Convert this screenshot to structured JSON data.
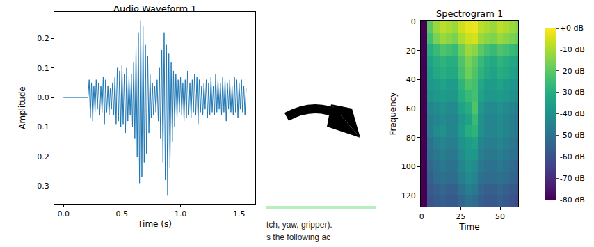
{
  "chart_data": [
    {
      "type": "line",
      "title": "Audio Waveform 1",
      "x_label": "Time (s)",
      "y_label": "Amplitude",
      "color": "#1f77b4",
      "grid": false,
      "x": [
        0,
        0.21,
        0.22,
        0.23,
        0.24,
        0.25,
        0.26,
        0.27,
        0.28,
        0.29,
        0.3,
        0.31,
        0.32,
        0.33,
        0.34,
        0.35,
        0.36,
        0.37,
        0.38,
        0.39,
        0.4,
        0.41,
        0.42,
        0.43,
        0.44,
        0.45,
        0.46,
        0.47,
        0.48,
        0.49,
        0.5,
        0.51,
        0.52,
        0.53,
        0.54,
        0.55,
        0.56,
        0.57,
        0.58,
        0.59,
        0.6,
        0.61,
        0.62,
        0.63,
        0.64,
        0.65,
        0.66,
        0.67,
        0.68,
        0.69,
        0.7,
        0.71,
        0.72,
        0.73,
        0.74,
        0.75,
        0.76,
        0.77,
        0.78,
        0.79,
        0.8,
        0.81,
        0.82,
        0.83,
        0.84,
        0.85,
        0.86,
        0.87,
        0.88,
        0.89,
        0.9,
        0.91,
        0.92,
        0.93,
        0.94,
        0.95,
        0.96,
        0.97,
        0.98,
        0.99,
        1.0,
        1.01,
        1.02,
        1.03,
        1.04,
        1.05,
        1.06,
        1.07,
        1.08,
        1.09,
        1.1,
        1.11,
        1.12,
        1.13,
        1.14,
        1.15,
        1.16,
        1.17,
        1.18,
        1.19,
        1.2,
        1.21,
        1.22,
        1.23,
        1.24,
        1.25,
        1.26,
        1.27,
        1.28,
        1.29,
        1.3,
        1.31,
        1.32,
        1.33,
        1.34,
        1.35,
        1.36,
        1.37,
        1.38,
        1.39,
        1.4,
        1.41,
        1.42,
        1.43,
        1.44,
        1.45,
        1.46,
        1.47,
        1.48,
        1.49,
        1.5,
        1.51,
        1.52,
        1.53,
        1.54,
        1.55,
        1.56
      ],
      "values": [
        0,
        0,
        0.06,
        -0.07,
        0.05,
        -0.08,
        0.04,
        -0.05,
        0.06,
        -0.04,
        0.05,
        -0.06,
        0.04,
        -0.05,
        0.07,
        -0.09,
        0.06,
        -0.05,
        0.04,
        -0.06,
        0.03,
        -0.04,
        0.05,
        -0.06,
        0.07,
        -0.09,
        0.1,
        -0.08,
        0.09,
        -0.1,
        0.11,
        -0.09,
        0.08,
        -0.12,
        0.1,
        -0.08,
        0.07,
        -0.06,
        0.08,
        -0.1,
        0.12,
        -0.14,
        0.17,
        -0.2,
        0.22,
        -0.29,
        0.26,
        -0.27,
        0.24,
        -0.22,
        0.18,
        -0.19,
        0.14,
        -0.12,
        0.08,
        -0.07,
        0.05,
        -0.06,
        0.04,
        -0.05,
        0.06,
        -0.08,
        0.1,
        -0.14,
        0.16,
        -0.22,
        0.22,
        -0.28,
        0.18,
        -0.33,
        0.15,
        -0.24,
        0.12,
        -0.15,
        0.09,
        -0.1,
        0.08,
        -0.07,
        0.06,
        -0.05,
        0.07,
        -0.06,
        0.05,
        -0.08,
        0.06,
        -0.07,
        0.09,
        -0.06,
        0.05,
        -0.07,
        0.06,
        -0.05,
        0.08,
        -0.06,
        0.07,
        -0.09,
        0.06,
        -0.05,
        0.04,
        -0.06,
        0.05,
        -0.04,
        0.06,
        -0.07,
        0.05,
        -0.06,
        0.07,
        -0.05,
        0.04,
        -0.06,
        0.08,
        -0.05,
        0.06,
        -0.04,
        0.05,
        -0.06,
        0.07,
        -0.05,
        0.06,
        -0.08,
        0.05,
        -0.04,
        0.06,
        -0.05,
        0.04,
        -0.06,
        0.07,
        -0.05,
        0.06,
        -0.07,
        0.05,
        -0.04,
        0.06,
        -0.05,
        0.04,
        -0.06,
        0.03
      ],
      "xlim": [
        -0.078,
        1.638
      ],
      "xticks": [
        {
          "value": 0,
          "label": "0.0"
        },
        {
          "value": 0.5,
          "label": "0.5"
        },
        {
          "value": 1,
          "label": "1.0"
        },
        {
          "value": 1.5,
          "label": "1.5"
        }
      ],
      "ylim": [
        -0.36,
        0.29
      ],
      "yticks": [
        {
          "value": -0.3,
          "label": "−0.3"
        },
        {
          "value": -0.2,
          "label": "−0.2"
        },
        {
          "value": -0.1,
          "label": "−0.1"
        },
        {
          "value": 0,
          "label": "0.0"
        },
        {
          "value": 0.1,
          "label": "0.1"
        },
        {
          "value": 0.2,
          "label": "0.2"
        }
      ]
    },
    {
      "type": "heatmap",
      "title": "Spectrogram 1",
      "x_label": "Time",
      "y_label": "Frequency",
      "color": "Viridis",
      "grid": false,
      "x": [
        1.5,
        5.5,
        9.5,
        13.5,
        17.5,
        21.5,
        25.5,
        29.5,
        33.5,
        37.5,
        41.5,
        45.5,
        49.5,
        53.5,
        57.5,
        61.5
      ],
      "y": [
        3.5,
        11.5,
        19.5,
        27.5,
        35.5,
        43.5,
        51.5,
        59.5,
        67.5,
        75.5,
        83.5,
        91.5,
        99.5,
        107.5,
        115.5,
        123.5
      ],
      "z": [
        [
          -80,
          -20,
          -12,
          -8,
          -10,
          -12,
          -6,
          -3,
          -2,
          -8,
          -10,
          -12,
          -8,
          -10,
          -12,
          -14
        ],
        [
          -80,
          -24,
          -16,
          -12,
          -14,
          -16,
          -10,
          -6,
          -5,
          -12,
          -14,
          -15,
          -12,
          -14,
          -16,
          -18
        ],
        [
          -80,
          -30,
          -26,
          -22,
          -24,
          -26,
          -18,
          -12,
          -14,
          -20,
          -24,
          -26,
          -22,
          -24,
          -26,
          -28
        ],
        [
          -80,
          -34,
          -30,
          -28,
          -30,
          -30,
          -22,
          -16,
          -20,
          -26,
          -30,
          -32,
          -28,
          -30,
          -32,
          -34
        ],
        [
          -80,
          -36,
          -32,
          -30,
          -32,
          -32,
          -24,
          -18,
          -22,
          -28,
          -32,
          -34,
          -30,
          -32,
          -34,
          -36
        ],
        [
          -80,
          -38,
          -36,
          -34,
          -36,
          -36,
          -28,
          -22,
          -24,
          -32,
          -36,
          -36,
          -34,
          -36,
          -38,
          -40
        ],
        [
          -80,
          -40,
          -38,
          -36,
          -38,
          -38,
          -30,
          -26,
          -24,
          -34,
          -38,
          -38,
          -36,
          -38,
          -40,
          -42
        ],
        [
          -80,
          -44,
          -42,
          -40,
          -42,
          -42,
          -34,
          -30,
          -22,
          -38,
          -42,
          -42,
          -40,
          -42,
          -44,
          -46
        ],
        [
          -80,
          -46,
          -44,
          -42,
          -44,
          -44,
          -38,
          -34,
          -26,
          -40,
          -44,
          -44,
          -42,
          -44,
          -46,
          -48
        ],
        [
          -80,
          -46,
          -42,
          -40,
          -44,
          -44,
          -36,
          -30,
          -28,
          -40,
          -44,
          -44,
          -42,
          -44,
          -46,
          -48
        ],
        [
          -80,
          -50,
          -46,
          -44,
          -46,
          -46,
          -40,
          -36,
          -34,
          -44,
          -46,
          -46,
          -44,
          -46,
          -48,
          -50
        ],
        [
          -80,
          -52,
          -48,
          -46,
          -48,
          -48,
          -42,
          -38,
          -38,
          -46,
          -48,
          -48,
          -46,
          -48,
          -50,
          -52
        ],
        [
          -80,
          -54,
          -50,
          -48,
          -50,
          -50,
          -44,
          -40,
          -42,
          -48,
          -50,
          -50,
          -48,
          -50,
          -52,
          -54
        ],
        [
          -80,
          -56,
          -52,
          -50,
          -52,
          -52,
          -46,
          -42,
          -44,
          -50,
          -52,
          -52,
          -50,
          -52,
          -54,
          -56
        ],
        [
          -80,
          -58,
          -56,
          -54,
          -56,
          -56,
          -50,
          -46,
          -48,
          -54,
          -56,
          -56,
          -54,
          -56,
          -58,
          -60
        ],
        [
          -80,
          -60,
          -58,
          -56,
          -58,
          -58,
          -54,
          -50,
          -52,
          -56,
          -58,
          -58,
          -56,
          -58,
          -60,
          -62
        ]
      ],
      "zlim": [
        -80,
        0
      ],
      "zticks": [
        {
          "value": 0,
          "label": "+0 dB"
        },
        {
          "value": -10,
          "label": "-10 dB"
        },
        {
          "value": -20,
          "label": "-20 dB"
        },
        {
          "value": -30,
          "label": "-30 dB"
        },
        {
          "value": -40,
          "label": "-40 dB"
        },
        {
          "value": -50,
          "label": "-50 dB"
        },
        {
          "value": -60,
          "label": "-60 dB"
        },
        {
          "value": -70,
          "label": "-70 dB"
        },
        {
          "value": -80,
          "label": "-80 dB"
        }
      ],
      "xlim": [
        -0.5,
        61.5
      ],
      "xticks": [
        0,
        25,
        50
      ],
      "ylim": [
        127.5,
        -0.5
      ],
      "yticks": [
        0,
        20,
        40,
        60,
        80,
        100,
        120
      ]
    }
  ],
  "page_fragments": [
    "tch, yaw, gripper).",
    "s the following ac"
  ]
}
